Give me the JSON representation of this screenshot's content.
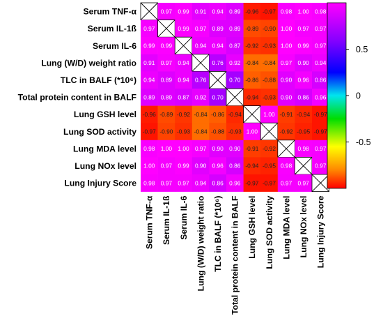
{
  "chart_data": {
    "type": "heatmap",
    "title": "",
    "rows": [
      "Serum TNF-α",
      "Serum IL-1ß",
      "Serum IL-6",
      "Lung (W/D) weight ratio",
      "TLC in BALF (*10⁶)",
      "Total protein content in BALF",
      "Lung GSH level",
      "Lung SOD activity",
      "Lung MDA level",
      "Lung NOx level",
      "Lung Injury Score"
    ],
    "columns": [
      "Serum TNF-α",
      "Serum IL-1ß",
      "Serum IL-6",
      "Lung (W/D) weight ratio",
      "TLC in BALF (*10⁶)",
      "Total protein content in BALF",
      "Lung GSH level",
      "Lung SOD activity",
      "Lung MDA level",
      "Lung NOx level",
      "Lung Injury Score"
    ],
    "values": [
      [
        null,
        0.97,
        0.99,
        0.91,
        0.94,
        0.89,
        -0.96,
        -0.97,
        0.98,
        1.0,
        0.98
      ],
      [
        0.97,
        null,
        0.99,
        0.97,
        0.89,
        0.89,
        -0.89,
        -0.9,
        1.0,
        0.97,
        0.97
      ],
      [
        0.99,
        0.99,
        null,
        0.94,
        0.94,
        0.87,
        -0.92,
        -0.93,
        1.0,
        0.99,
        0.97
      ],
      [
        0.91,
        0.97,
        0.94,
        null,
        0.76,
        0.92,
        -0.84,
        -0.84,
        0.97,
        0.9,
        0.94
      ],
      [
        0.94,
        0.89,
        0.94,
        0.76,
        null,
        0.7,
        -0.86,
        -0.88,
        0.9,
        0.96,
        0.86
      ],
      [
        0.89,
        0.89,
        0.87,
        0.92,
        0.7,
        null,
        -0.94,
        -0.93,
        0.9,
        0.86,
        0.96
      ],
      [
        -0.96,
        -0.89,
        -0.92,
        -0.84,
        -0.86,
        -0.94,
        null,
        1.0,
        -0.91,
        -0.94,
        -0.97
      ],
      [
        -0.97,
        -0.9,
        -0.93,
        -0.84,
        -0.88,
        -0.93,
        1.0,
        null,
        -0.92,
        -0.95,
        -0.97
      ],
      [
        0.98,
        1.0,
        1.0,
        0.97,
        0.9,
        0.9,
        -0.91,
        -0.92,
        null,
        0.98,
        0.97
      ],
      [
        1.0,
        0.97,
        0.99,
        0.9,
        0.96,
        0.86,
        -0.94,
        -0.95,
        0.98,
        null,
        0.97
      ],
      [
        0.98,
        0.97,
        0.97,
        0.94,
        0.86,
        0.96,
        -0.97,
        -0.97,
        0.97,
        0.97,
        null
      ]
    ],
    "cell_text": [
      [
        "",
        "0.97",
        "0.99",
        "0.91",
        "0.94",
        "0.89",
        "-0.96",
        "-0.97",
        "0.98",
        "1.00",
        "0.98"
      ],
      [
        "0.97",
        "",
        "0.99",
        "0.97",
        "0.89",
        "0.89",
        "-0.89",
        "-0.90",
        "1.00",
        "0.97",
        "0.97"
      ],
      [
        "0.99",
        "0.99",
        "",
        "0.94",
        "0.94",
        "0.87",
        "-0.92",
        "-0.93",
        "1.00",
        "0.99",
        "0.97"
      ],
      [
        "0.91",
        "0.97",
        "0.94",
        "",
        "0.76",
        "0.92",
        "-0.84",
        "-0.84",
        "0.97",
        "0.90",
        "0.94"
      ],
      [
        "0.94",
        "0.89",
        "0.94",
        "0.76",
        "",
        "0.70",
        "-0.86",
        "-0.88",
        "0.90",
        "0.96",
        "0.86"
      ],
      [
        "0.89",
        "0.89",
        "0.87",
        "0.92",
        "0.70",
        "",
        "-0.94",
        "-0.93",
        "0.90",
        "0.86",
        "0.96"
      ],
      [
        "-0.96",
        "-0.89",
        "-0.92",
        "-0.84",
        "-0.86",
        "-0.94",
        "",
        "1.00",
        "-0.91",
        "-0.94",
        "-0.97"
      ],
      [
        "-0.97",
        "-0.90",
        "-0.93",
        "-0.84",
        "-0.88",
        "-0.93",
        "1.00",
        "",
        "-0.92",
        "-0.95",
        "-0.97"
      ],
      [
        "0.98",
        "1.00",
        "1.00",
        "0.97",
        "0.90",
        "0.90",
        "-0.91",
        "-0.92",
        "",
        "0.98",
        "0.97"
      ],
      [
        "1.00",
        "0.97",
        "0.99",
        "0.90",
        "0.96",
        "0.86",
        "-0.94",
        "-0.95",
        "0.98",
        "",
        "0.97"
      ],
      [
        "0.98",
        "0.97",
        "0.97",
        "0.94",
        "0.86",
        "0.96",
        "-0.97",
        "-0.97",
        "0.97",
        "0.97",
        ""
      ]
    ],
    "diagonal_marker": "cross",
    "colorbar": {
      "range": [
        -1,
        1
      ],
      "ticks": [
        0.5,
        0,
        -0.5
      ],
      "tick_labels": [
        "0.5",
        "0",
        "-0.5"
      ],
      "colors": [
        {
          "value": 1.0,
          "color": "#ff00ff"
        },
        {
          "value": 0.6,
          "color": "#8800ff"
        },
        {
          "value": 0.25,
          "color": "#0000ff"
        },
        {
          "value": 0.0,
          "color": "#00e5ee"
        },
        {
          "value": -0.25,
          "color": "#00dd00"
        },
        {
          "value": -0.55,
          "color": "#ffff00"
        },
        {
          "value": -0.8,
          "color": "#ff8800"
        },
        {
          "value": -1.0,
          "color": "#ff0000"
        }
      ]
    }
  }
}
